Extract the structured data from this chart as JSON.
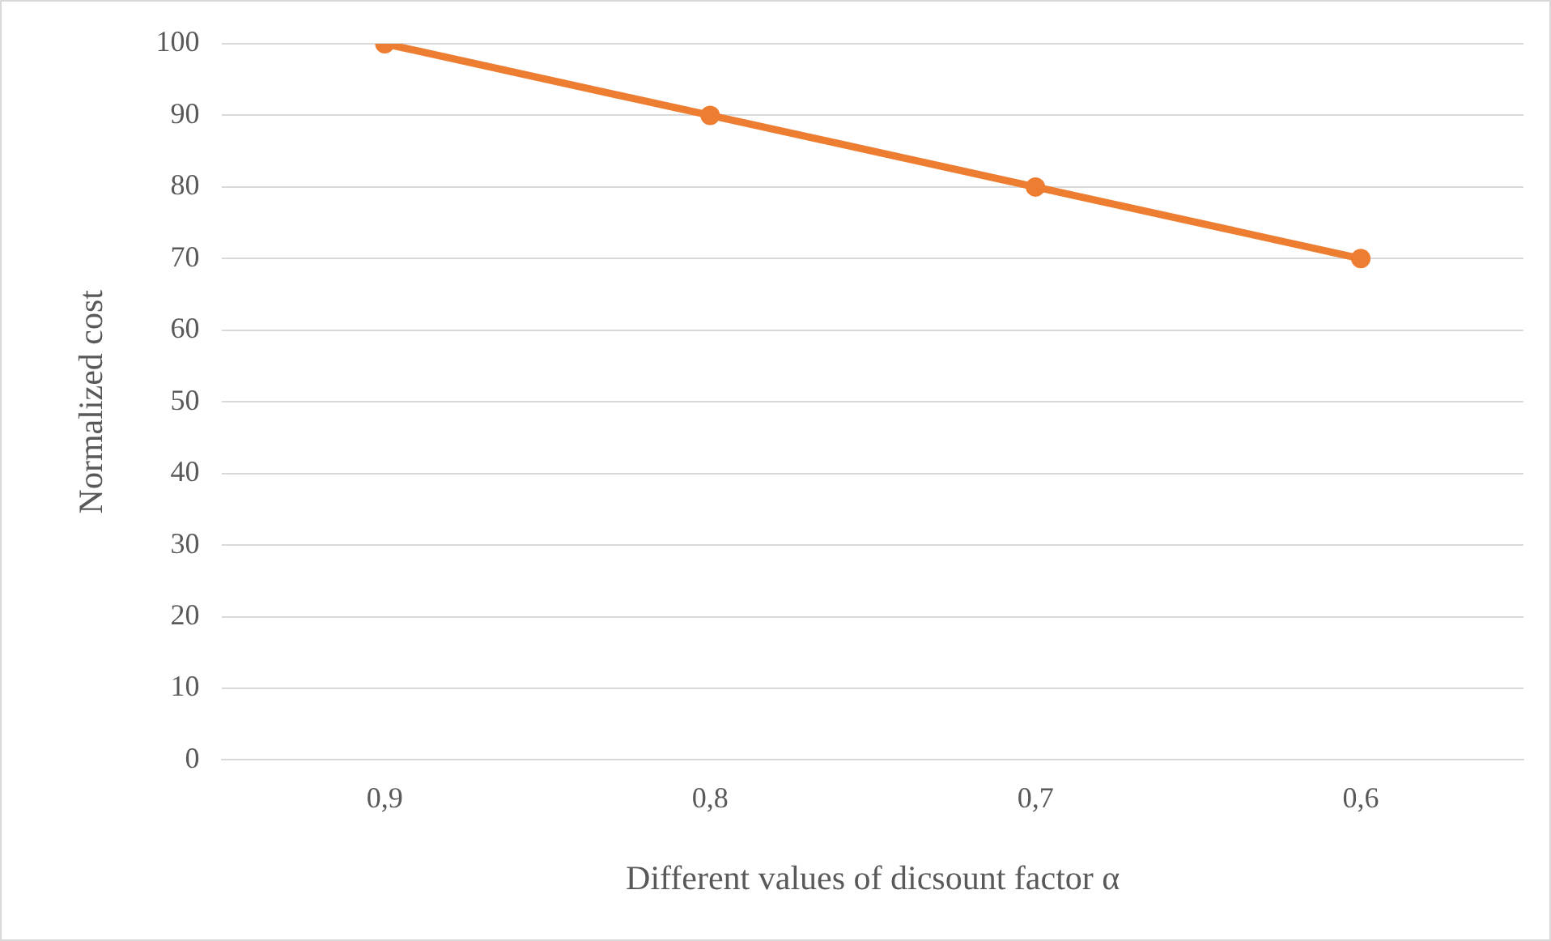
{
  "chart_data": {
    "type": "line",
    "xlabel": "Different values of dicsount factor α",
    "ylabel": "Normalized cost",
    "categories": [
      "0,9",
      "0,8",
      "0,7",
      "0,6"
    ],
    "series": [
      {
        "color": "#ed7d31",
        "values": [
          100,
          90,
          80,
          70
        ]
      }
    ],
    "ylim": [
      0,
      100
    ],
    "yticks": [
      0,
      10,
      20,
      30,
      40,
      50,
      60,
      70,
      80,
      90,
      100
    ],
    "grid": "y",
    "legend": false,
    "marker": "circle",
    "line_style": "solid"
  }
}
